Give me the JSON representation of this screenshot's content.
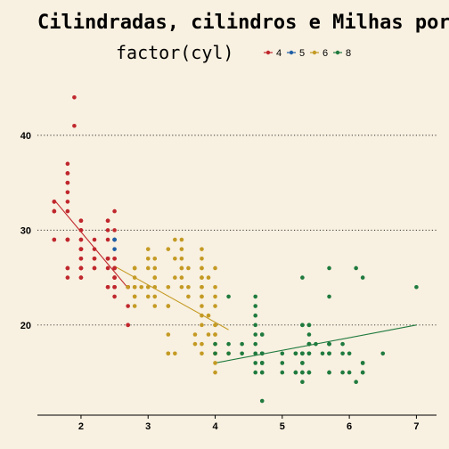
{
  "chart_data": {
    "type": "scatter",
    "title": "Cilindradas, cilindros e Milhas por Galão",
    "legend": {
      "title": "factor(cyl)",
      "position": "top",
      "entries": [
        {
          "label": "4",
          "color": "#c0272d"
        },
        {
          "label": "5",
          "color": "#1f5fa6"
        },
        {
          "label": "6",
          "color": "#c49a23"
        },
        {
          "label": "8",
          "color": "#1f7a3e"
        }
      ]
    },
    "x_ticks": [
      "2",
      "3",
      "4",
      "5",
      "6",
      "7"
    ],
    "y_ticks": [
      "20",
      "30",
      "40"
    ],
    "xlim": [
      1.35,
      7.3
    ],
    "ylim": [
      10.5,
      46
    ],
    "grid": "horizontal dotted",
    "series": [
      {
        "group": "4",
        "color": "#c0272d",
        "points": [
          [
            1.8,
            29
          ],
          [
            1.8,
            29
          ],
          [
            2.0,
            31
          ],
          [
            2.0,
            30
          ],
          [
            1.8,
            26
          ],
          [
            1.8,
            26
          ],
          [
            2.0,
            28
          ],
          [
            2.0,
            27
          ],
          [
            2.5,
            26
          ],
          [
            2.5,
            25
          ],
          [
            2.5,
            27
          ],
          [
            2.5,
            25
          ],
          [
            2.5,
            27
          ],
          [
            2.2,
            26
          ],
          [
            2.2,
            26
          ],
          [
            2.4,
            27
          ],
          [
            2.4,
            30
          ],
          [
            2.0,
            28
          ],
          [
            1.6,
            33
          ],
          [
            1.6,
            32
          ],
          [
            1.6,
            32
          ],
          [
            1.6,
            29
          ],
          [
            1.6,
            32
          ],
          [
            1.8,
            34
          ],
          [
            1.8,
            36
          ],
          [
            1.8,
            36
          ],
          [
            1.8,
            29
          ],
          [
            2.0,
            26
          ],
          [
            2.0,
            25
          ],
          [
            2.0,
            27
          ],
          [
            2.4,
            24
          ],
          [
            2.4,
            26
          ],
          [
            2.4,
            27
          ],
          [
            2.4,
            31
          ],
          [
            2.4,
            31
          ],
          [
            2.5,
            30
          ],
          [
            2.5,
            32
          ],
          [
            1.8,
            35
          ],
          [
            1.8,
            37
          ],
          [
            1.9,
            44
          ],
          [
            1.9,
            41
          ],
          [
            2.0,
            29
          ],
          [
            2.0,
            26
          ],
          [
            2.0,
            28
          ],
          [
            2.0,
            29
          ],
          [
            2.5,
            24
          ],
          [
            2.5,
            23
          ],
          [
            2.7,
            22
          ],
          [
            2.7,
            20
          ],
          [
            2.7,
            20
          ],
          [
            2.0,
            28
          ],
          [
            2.2,
            29
          ],
          [
            2.4,
            29
          ],
          [
            2.2,
            28
          ],
          [
            1.8,
            33
          ],
          [
            1.8,
            35
          ],
          [
            2.0,
            28
          ],
          [
            2.0,
            26
          ],
          [
            2.5,
            29
          ],
          [
            2.5,
            24
          ],
          [
            2.7,
            24
          ],
          [
            2.2,
            27
          ],
          [
            2.4,
            27
          ],
          [
            2.4,
            24
          ],
          [
            1.8,
            25
          ],
          [
            2.0,
            26
          ],
          [
            2.0,
            25
          ],
          [
            2.5,
            25
          ],
          [
            2.5,
            26
          ],
          [
            2.2,
            27
          ],
          [
            1.6,
            29
          ],
          [
            1.6,
            33
          ],
          [
            1.8,
            32
          ],
          [
            2.0,
            30
          ],
          [
            2.5,
            24
          ],
          [
            2.5,
            26
          ],
          [
            2.7,
            24
          ],
          [
            1.8,
            29
          ],
          [
            2.0,
            31
          ]
        ],
        "trend": [
          [
            1.6,
            33.2
          ],
          [
            2.7,
            23.9
          ]
        ]
      },
      {
        "group": "5",
        "color": "#1f5fa6",
        "points": [
          [
            2.5,
            29
          ],
          [
            2.5,
            29
          ],
          [
            2.5,
            28
          ],
          [
            2.5,
            29
          ]
        ],
        "trend": []
      },
      {
        "group": "6",
        "color": "#c49a23",
        "points": [
          [
            2.8,
            26
          ],
          [
            2.8,
            26
          ],
          [
            3.1,
            27
          ],
          [
            3.1,
            25
          ],
          [
            2.8,
            25
          ],
          [
            3.1,
            25
          ],
          [
            2.8,
            24
          ],
          [
            3.1,
            26
          ],
          [
            2.8,
            26
          ],
          [
            3.0,
            26
          ],
          [
            3.0,
            24
          ],
          [
            3.3,
            24
          ],
          [
            3.3,
            22
          ],
          [
            3.8,
            22
          ],
          [
            3.8,
            21
          ],
          [
            3.8,
            18
          ],
          [
            4.0,
            20
          ],
          [
            4.0,
            19
          ],
          [
            3.8,
            24
          ],
          [
            3.8,
            26
          ],
          [
            3.8,
            27
          ],
          [
            3.9,
            25
          ],
          [
            3.9,
            21
          ],
          [
            3.5,
            25
          ],
          [
            3.5,
            26
          ],
          [
            3.7,
            19
          ],
          [
            3.7,
            18
          ],
          [
            4.0,
            17
          ],
          [
            4.2,
            17
          ],
          [
            4.0,
            19
          ],
          [
            4.0,
            20
          ],
          [
            4.0,
            18
          ],
          [
            3.0,
            28
          ],
          [
            3.0,
            27
          ],
          [
            3.5,
            26
          ],
          [
            3.3,
            28
          ],
          [
            3.4,
            29
          ],
          [
            3.6,
            26
          ],
          [
            3.8,
            28
          ],
          [
            3.4,
            27
          ],
          [
            3.5,
            27
          ],
          [
            3.8,
            24
          ],
          [
            3.8,
            23
          ],
          [
            4.0,
            17
          ],
          [
            3.3,
            17
          ],
          [
            3.4,
            17
          ],
          [
            3.9,
            19
          ],
          [
            2.8,
            23
          ],
          [
            4.0,
            15
          ],
          [
            2.7,
            24
          ],
          [
            2.9,
            24
          ],
          [
            3.1,
            23
          ],
          [
            3.5,
            29
          ],
          [
            3.5,
            28
          ],
          [
            3.8,
            20
          ],
          [
            3.8,
            26
          ],
          [
            3.4,
            25
          ],
          [
            3.6,
            24
          ],
          [
            3.6,
            23
          ],
          [
            4.0,
            24
          ],
          [
            4.0,
            22
          ],
          [
            4.0,
            17
          ],
          [
            3.3,
            19
          ],
          [
            3.3,
            17
          ],
          [
            4.0,
            23
          ],
          [
            2.8,
            24
          ],
          [
            2.8,
            23
          ],
          [
            2.8,
            22
          ],
          [
            3.0,
            23
          ],
          [
            3.8,
            25
          ],
          [
            4.0,
            26
          ],
          [
            3.5,
            24
          ],
          [
            3.3,
            22
          ],
          [
            4.0,
            16
          ],
          [
            3.8,
            23
          ],
          [
            3.1,
            22
          ],
          [
            3.8,
            17
          ],
          [
            3.1,
            24
          ],
          [
            3.8,
            25
          ]
        ],
        "trend": [
          [
            2.5,
            26.2
          ],
          [
            4.2,
            19.5
          ]
        ]
      },
      {
        "group": "8",
        "color": "#1f7a3e",
        "points": [
          [
            5.7,
            18
          ],
          [
            5.7,
            18
          ],
          [
            6.2,
            15
          ],
          [
            6.2,
            16
          ],
          [
            7.0,
            24
          ],
          [
            5.3,
            20
          ],
          [
            5.3,
            17
          ],
          [
            5.7,
            15
          ],
          [
            6.5,
            17
          ],
          [
            4.7,
            12
          ],
          [
            4.7,
            17
          ],
          [
            4.7,
            16
          ],
          [
            5.2,
            17
          ],
          [
            5.2,
            15
          ],
          [
            5.7,
            17
          ],
          [
            5.9,
            17
          ],
          [
            4.7,
            16
          ],
          [
            4.7,
            15
          ],
          [
            4.7,
            19
          ],
          [
            4.7,
            17
          ],
          [
            5.2,
            15
          ],
          [
            5.7,
            18
          ],
          [
            5.9,
            15
          ],
          [
            4.6,
            20
          ],
          [
            5.4,
            17
          ],
          [
            5.4,
            15
          ],
          [
            4.0,
            18
          ],
          [
            4.0,
            17
          ],
          [
            4.6,
            21
          ],
          [
            4.6,
            19
          ],
          [
            5.0,
            17
          ],
          [
            5.4,
            18
          ],
          [
            4.2,
            18
          ],
          [
            4.2,
            17
          ],
          [
            4.6,
            23
          ],
          [
            5.4,
            19
          ],
          [
            5.4,
            20
          ],
          [
            4.4,
            18
          ],
          [
            5.3,
            16
          ],
          [
            5.3,
            17
          ],
          [
            5.3,
            14
          ],
          [
            5.7,
            17
          ],
          [
            6.0,
            17
          ],
          [
            5.3,
            15
          ],
          [
            5.3,
            20
          ],
          [
            6.1,
            14
          ],
          [
            4.7,
            16
          ],
          [
            5.7,
            23
          ],
          [
            6.1,
            26
          ],
          [
            5.3,
            25
          ],
          [
            4.6,
            22
          ],
          [
            4.6,
            17
          ],
          [
            5.0,
            16
          ],
          [
            5.4,
            18
          ],
          [
            6.2,
            15
          ],
          [
            6.2,
            16
          ],
          [
            5.7,
            26
          ],
          [
            5.3,
            16
          ],
          [
            5.2,
            17
          ],
          [
            4.7,
            19
          ],
          [
            5.7,
            18
          ],
          [
            5.4,
            17
          ],
          [
            4.6,
            18
          ],
          [
            5.0,
            15
          ],
          [
            5.4,
            20
          ],
          [
            5.7,
            15
          ],
          [
            5.9,
            18
          ],
          [
            4.6,
            15
          ],
          [
            5.4,
            18
          ],
          [
            5.6,
            17
          ],
          [
            4.4,
            17
          ],
          [
            5.5,
            18
          ],
          [
            5.3,
            15
          ],
          [
            5.7,
            17
          ],
          [
            6.0,
            15
          ],
          [
            4.2,
            23
          ],
          [
            4.6,
            16
          ],
          [
            5.4,
            15
          ],
          [
            6.2,
            25
          ],
          [
            4.7,
            17
          ],
          [
            5.3,
            17
          ],
          [
            4.7,
            15
          ]
        ],
        "trend": [
          [
            4.0,
            16.0
          ],
          [
            7.0,
            20.0
          ]
        ]
      }
    ]
  }
}
